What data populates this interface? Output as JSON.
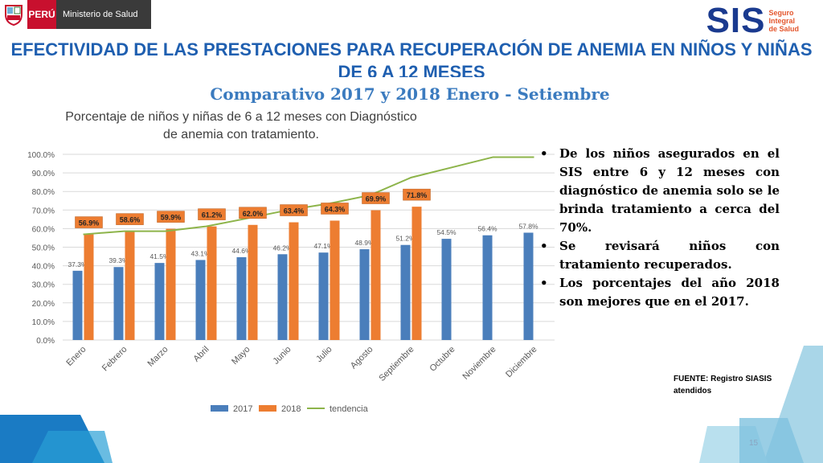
{
  "header": {
    "country_label": "PERÚ",
    "ministry_label": "Ministerio de Salud",
    "logo_text": "SIS",
    "logo_sub": [
      "Seguro",
      "Integral",
      "de Salud"
    ]
  },
  "slide": {
    "title": "EFECTIVIDAD DE LAS PRESTACIONES PARA RECUPERACIÓN DE ANEMIA EN NIÑOS Y NIÑAS DE 6 A 12 MESES",
    "subtitle": "Comparativo 2017 y 2018  Enero - Setiembre",
    "bullets": [
      "De los niños  asegurados en el SIS entre 6 y 12 meses con diagnóstico de anemia solo se le brinda tratamiento a  cerca del 70%.",
      "Se revisará niños con tratamiento recuperados.",
      "Los porcentajes del año 2018 son mejores que en el 2017."
    ],
    "source_line1": "FUENTE: Registro SIASIS",
    "source_line2": "atendidos",
    "page_number": "15"
  },
  "chart_data": {
    "type": "bar",
    "title": "Porcentaje de niños y niñas de 6 a 12 meses con Diagnóstico de anemia con tratamiento.",
    "title_line1": "Porcentaje de niños y niñas de 6 a 12 meses con Diagnóstico",
    "title_line2": "de anemia con tratamiento.",
    "categories": [
      "Enero",
      "Febrero",
      "Marzo",
      "Abril",
      "Mayo",
      "Junio",
      "Julio",
      "Agosto",
      "Septiembre",
      "Octubre",
      "Noviembre",
      "Diciembre"
    ],
    "series": [
      {
        "name": "2017",
        "color": "#4a7ebb",
        "values": [
          37.3,
          39.3,
          41.5,
          43.1,
          44.6,
          46.2,
          47.1,
          48.9,
          51.2,
          54.5,
          56.4,
          57.8
        ],
        "labels": [
          "37.3%",
          "39.3%",
          "41.5%",
          "43.1%",
          "44.6%",
          "46.2%",
          "47.1%",
          "48.9%",
          "51.2%",
          "54.5%",
          "56.4%",
          "57.8%"
        ]
      },
      {
        "name": "2018",
        "color": "#ed7d31",
        "values": [
          56.9,
          58.6,
          59.9,
          61.2,
          62.0,
          63.4,
          64.3,
          69.9,
          71.8,
          null,
          null,
          null
        ],
        "labels": [
          "56.9%",
          "58.6%",
          "59.9%",
          "61.2%",
          "62.0%",
          "63.4%",
          "64.3%",
          "69.9%",
          "71.8%",
          "",
          "",
          ""
        ]
      },
      {
        "name": "tendencia",
        "color": "#8db44a",
        "type": "line",
        "values": [
          56.9,
          58.6,
          58.6,
          61.2,
          65.5,
          70,
          73.5,
          78,
          87.5,
          93,
          98.5,
          98.5
        ]
      }
    ],
    "yticks": [
      "0.0%",
      "10.0%",
      "20.0%",
      "30.0%",
      "40.0%",
      "50.0%",
      "60.0%",
      "70.0%",
      "80.0%",
      "90.0%",
      "100.0%"
    ],
    "ylim": [
      0,
      100
    ],
    "grid": true,
    "legend_position": "bottom"
  }
}
